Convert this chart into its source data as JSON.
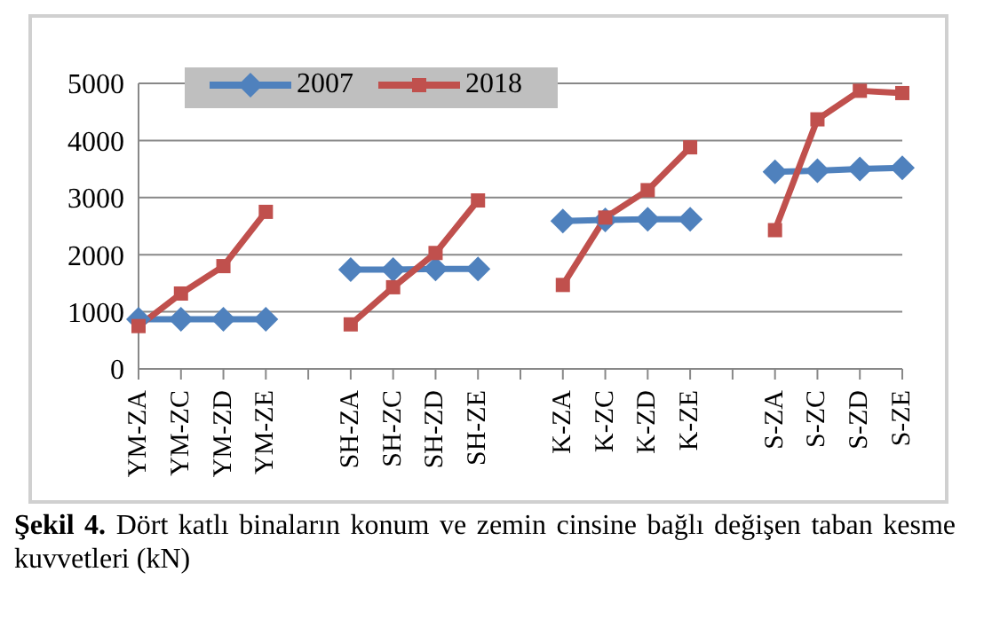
{
  "chart_data": {
    "type": "line",
    "categories": [
      "YM-ZA",
      "YM-ZC",
      "YM-ZD",
      "YM-ZE",
      null,
      "SH-ZA",
      "SH-ZC",
      "SH-ZD",
      "SH-ZE",
      null,
      "K-ZA",
      "K-ZC",
      "K-ZD",
      "K-ZE",
      null,
      "S-ZA",
      "S-ZC",
      "S-ZD",
      "S-ZE"
    ],
    "series": [
      {
        "name": "2007",
        "color": "#4f81bd",
        "marker": "diamond",
        "values": [
          870,
          870,
          870,
          870,
          null,
          1740,
          1740,
          1750,
          1750,
          null,
          2590,
          2610,
          2620,
          2620,
          null,
          3450,
          3470,
          3500,
          3520
        ]
      },
      {
        "name": "2018",
        "color": "#c0504d",
        "marker": "square",
        "values": [
          750,
          1320,
          1800,
          2750,
          null,
          780,
          1430,
          2030,
          2950,
          null,
          1470,
          2650,
          3130,
          3880,
          null,
          2430,
          4370,
          4870,
          4830
        ]
      }
    ],
    "ylim": [
      0,
      5000
    ],
    "yticks": [
      0,
      1000,
      2000,
      3000,
      4000,
      5000
    ],
    "grid": "y",
    "legend": "top",
    "line_style": "solid",
    "annotations": [
      "Şekil 4. Dört katlı binaların konum ve zemin cinsine bağlı değişen taban kesme kuvvetleri (kN)"
    ]
  }
}
